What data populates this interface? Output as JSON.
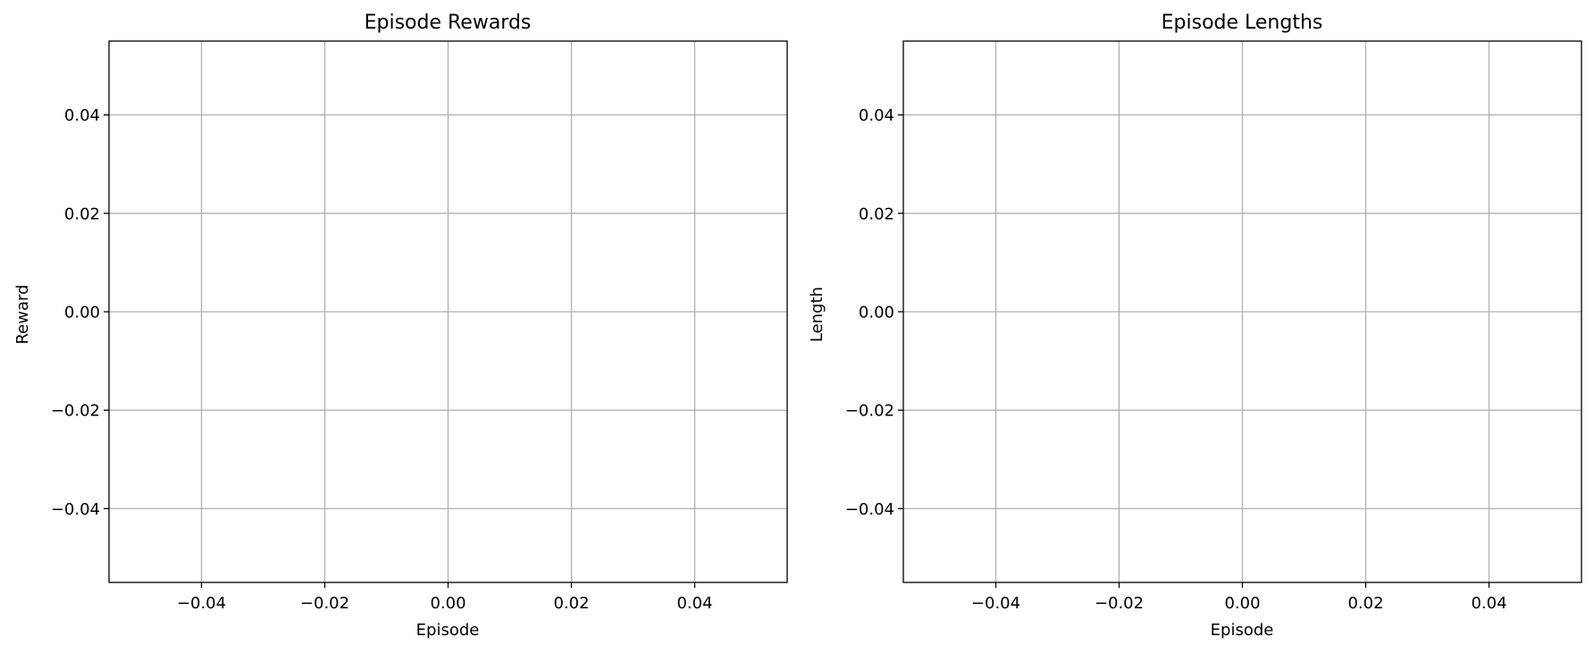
{
  "chart_data": [
    {
      "type": "line",
      "title": "Episode Rewards",
      "xlabel": "Episode",
      "ylabel": "Reward",
      "xlim": [
        -0.055,
        0.055
      ],
      "ylim": [
        -0.055,
        0.055
      ],
      "xticks": [
        -0.04,
        -0.02,
        0.0,
        0.02,
        0.04
      ],
      "xtick_labels": [
        "−0.04",
        "−0.02",
        "0.00",
        "0.02",
        "0.04"
      ],
      "yticks": [
        -0.04,
        -0.02,
        0.0,
        0.02,
        0.04
      ],
      "ytick_labels": [
        "−0.04",
        "−0.02",
        "0.00",
        "0.02",
        "0.04"
      ],
      "grid": true,
      "series": []
    },
    {
      "type": "line",
      "title": "Episode Lengths",
      "xlabel": "Episode",
      "ylabel": "Length",
      "xlim": [
        -0.055,
        0.055
      ],
      "ylim": [
        -0.055,
        0.055
      ],
      "xticks": [
        -0.04,
        -0.02,
        0.0,
        0.02,
        0.04
      ],
      "xtick_labels": [
        "−0.04",
        "−0.02",
        "0.00",
        "0.02",
        "0.04"
      ],
      "yticks": [
        -0.04,
        -0.02,
        0.0,
        0.02,
        0.04
      ],
      "ytick_labels": [
        "−0.04",
        "−0.02",
        "0.00",
        "0.02",
        "0.04"
      ],
      "grid": true,
      "series": []
    }
  ],
  "colors": {
    "grid": "#b0b0b0",
    "axes": "#000000",
    "background": "#ffffff"
  }
}
